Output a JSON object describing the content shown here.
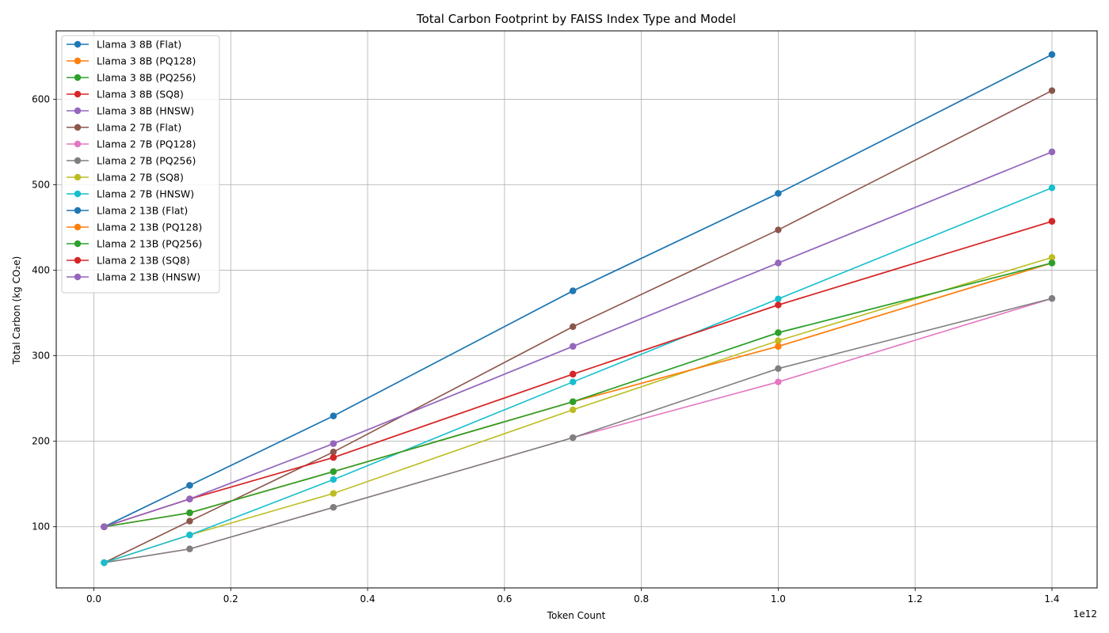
{
  "chart_data": {
    "type": "line",
    "title": "Total Carbon Footprint by FAISS Index Type and Model",
    "xlabel": "Token Count",
    "ylabel": "Total Carbon (kg CO₂e)",
    "x_offset_label": "1e12",
    "x_scale_factor": 1000000000000.0,
    "xlim": [
      -55000000000.0,
      1466000000000.0
    ],
    "ylim": [
      28.5,
      680
    ],
    "x_ticks": [
      0.0,
      200000000000.0,
      400000000000.0,
      600000000000.0,
      800000000000.0,
      1000000000000.0,
      1200000000000.0,
      1400000000000.0
    ],
    "x_tick_labels": [
      "0.0",
      "0.2",
      "0.4",
      "0.6",
      "0.8",
      "1.0",
      "1.2",
      "1.4"
    ],
    "y_ticks": [
      100,
      200,
      300,
      400,
      500,
      600
    ],
    "y_tick_labels": [
      "100",
      "200",
      "300",
      "400",
      "500",
      "600"
    ],
    "grid": true,
    "legend_position": "top-left",
    "x": [
      15000000000,
      140000000000,
      350000000000,
      700000000000,
      1000000000000,
      1400000000000
    ],
    "series": [
      {
        "name": "Llama 3 8B (Flat)",
        "color": "#1f77b4",
        "values": [
          100,
          148.4,
          229.6,
          375.9,
          489.9,
          652.3
        ]
      },
      {
        "name": "Llama 3 8B (PQ128)",
        "color": "#ff7f0e",
        "values": [
          100,
          116.3,
          164.5,
          246.2,
          311.0,
          408.5
        ]
      },
      {
        "name": "Llama 3 8B (PQ256)",
        "color": "#2ca02c",
        "values": [
          100,
          116.3,
          164.5,
          246.2,
          327.0,
          408.5
        ]
      },
      {
        "name": "Llama 3 8B (SQ8)",
        "color": "#d62728",
        "values": [
          100,
          132.5,
          181.0,
          278.5,
          359.4,
          457.2
        ]
      },
      {
        "name": "Llama 3 8B (HNSW)",
        "color": "#9467bd",
        "values": [
          100,
          132.5,
          197.2,
          311.0,
          408.5,
          538.4
        ]
      },
      {
        "name": "Llama 2 7B (Flat)",
        "color": "#8c564b",
        "values": [
          58,
          106.6,
          187.5,
          334.0,
          447.2,
          610.1
        ]
      },
      {
        "name": "Llama 2 7B (PQ128)",
        "color": "#e377c2",
        "values": [
          58,
          74.1,
          122.7,
          204.2,
          269.4,
          367.0
        ]
      },
      {
        "name": "Llama 2 7B (PQ256)",
        "color": "#7f7f7f",
        "values": [
          58,
          74.1,
          122.7,
          204.2,
          285.0,
          367.0
        ]
      },
      {
        "name": "Llama 2 7B (SQ8)",
        "color": "#bcbd22",
        "values": [
          58,
          90.4,
          139.0,
          236.8,
          317.6,
          415.0
        ]
      },
      {
        "name": "Llama 2 7B (HNSW)",
        "color": "#17becf",
        "values": [
          58,
          90.4,
          155.2,
          269.4,
          366.5,
          496.4
        ]
      },
      {
        "name": "Llama 2 13B (Flat)",
        "color": "#1f77b4",
        "values": [
          100,
          148.4,
          229.6,
          375.9,
          489.9,
          652.3
        ]
      },
      {
        "name": "Llama 2 13B (PQ128)",
        "color": "#ff7f0e",
        "values": [
          100,
          116.3,
          164.5,
          246.2,
          311.0,
          408.5
        ]
      },
      {
        "name": "Llama 2 13B (PQ256)",
        "color": "#2ca02c",
        "values": [
          100,
          116.3,
          164.5,
          246.2,
          327.0,
          408.5
        ]
      },
      {
        "name": "Llama 2 13B (SQ8)",
        "color": "#d62728",
        "values": [
          100,
          132.5,
          181.0,
          278.5,
          359.4,
          457.2
        ]
      },
      {
        "name": "Llama 2 13B (HNSW)",
        "color": "#9467bd",
        "values": [
          100,
          132.5,
          197.2,
          311.0,
          408.5,
          538.4
        ]
      }
    ]
  }
}
